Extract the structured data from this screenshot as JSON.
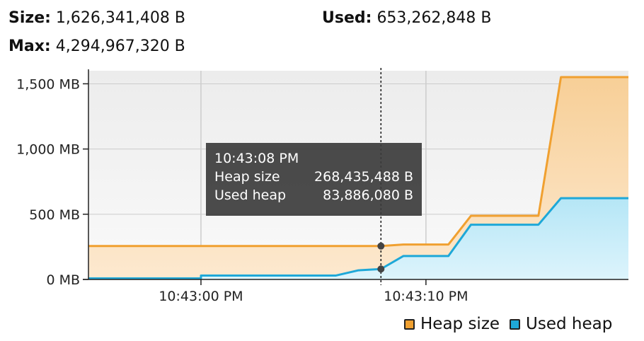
{
  "stats": {
    "size_label": "Size:",
    "size_value": "1,626,341,408 B",
    "used_label": "Used:",
    "used_value": "653,262,848 B",
    "max_label": "Max:",
    "max_value": "4,294,967,320 B"
  },
  "tooltip": {
    "time": "10:43:08 PM",
    "heap_label": "Heap size",
    "heap_value": "268,435,488 B",
    "used_label": "Used heap",
    "used_value": "83,886,080 B"
  },
  "colors": {
    "heap": "#f0a030",
    "heap_fill": "#fbe1bd",
    "used": "#1ea8d8",
    "used_fill": "#cdeef9",
    "plot_bg": "#f2f2f2",
    "grid": "#cccccc"
  },
  "chart_data": {
    "type": "area",
    "title": "",
    "xlabel": "",
    "ylabel": "",
    "ylim": [
      0,
      1600
    ],
    "xlim": [
      "10:42:55 PM",
      "10:43:19 PM"
    ],
    "yticks": [
      {
        "value": 0,
        "label": "0 MB"
      },
      {
        "value": 500,
        "label": "500 MB"
      },
      {
        "value": 1000,
        "label": "1,000 MB"
      },
      {
        "value": 1500,
        "label": "1,500 MB"
      }
    ],
    "xticks": [
      {
        "value": "10:43:00 PM",
        "label": "10:43:00 PM"
      },
      {
        "value": "10:43:10 PM",
        "label": "10:43:10 PM"
      }
    ],
    "grid": true,
    "legend": "bottom-right",
    "cursor_x": "10:43:08 PM",
    "series": [
      {
        "name": "Heap size",
        "color": "#f0a030",
        "x": [
          "10:42:55 PM",
          "10:43:08 PM",
          "10:43:09 PM",
          "10:43:11 PM",
          "10:43:12 PM",
          "10:43:15 PM",
          "10:43:16 PM",
          "10:43:19 PM"
        ],
        "values": [
          256,
          256,
          268,
          268,
          488,
          488,
          1551,
          1551
        ]
      },
      {
        "name": "Used heap",
        "color": "#1ea8d8",
        "x": [
          "10:42:55 PM",
          "10:43:00 PM",
          "10:43:00 PM",
          "10:43:06 PM",
          "10:43:07 PM",
          "10:43:08 PM",
          "10:43:09 PM",
          "10:43:11 PM",
          "10:43:12 PM",
          "10:43:15 PM",
          "10:43:16 PM",
          "10:43:19 PM"
        ],
        "values": [
          8,
          8,
          30,
          30,
          70,
          80,
          180,
          180,
          420,
          420,
          623,
          623
        ]
      }
    ]
  }
}
